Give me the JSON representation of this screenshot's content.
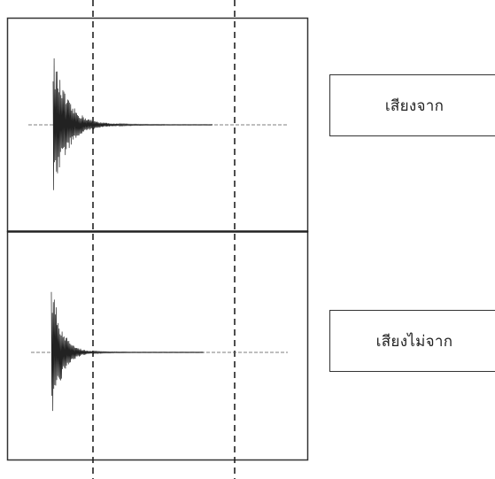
{
  "panels": [
    {
      "id": "top",
      "label": "เสียงจาก",
      "amplitude": 1.0,
      "decay": 1.0
    },
    {
      "id": "bottom",
      "label": "เสียงไม่จาก",
      "amplitude": 1.0,
      "decay": 1.4
    }
  ],
  "colors": {
    "line": "#222222",
    "border": "#333333",
    "background": "#ffffff"
  }
}
